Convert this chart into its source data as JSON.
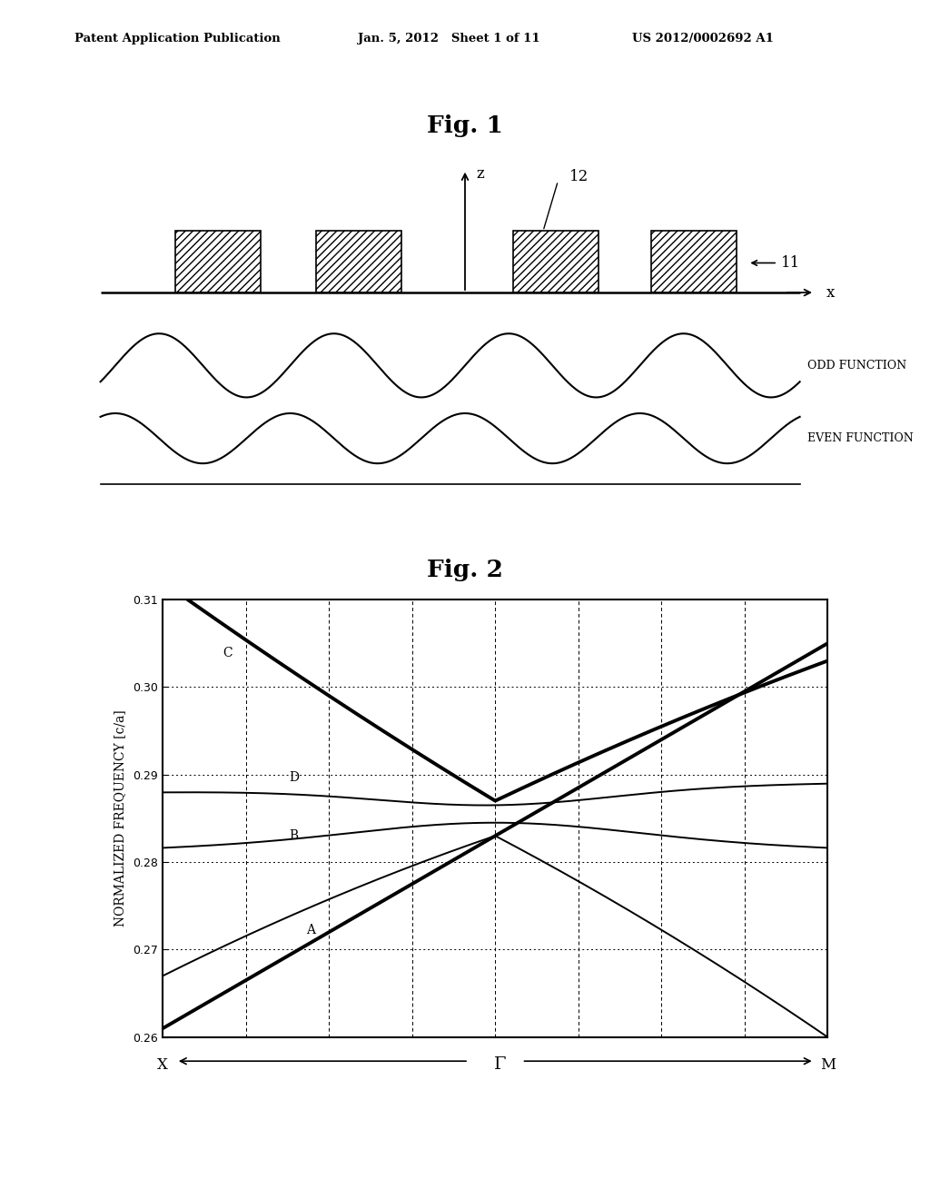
{
  "fig_title1": "Fig. 1",
  "fig_title2": "Fig. 2",
  "header_left": "Patent Application Publication",
  "header_mid": "Jan. 5, 2012   Sheet 1 of 11",
  "header_right": "US 2012/0002692 A1",
  "label_11": "11",
  "label_12": "12",
  "label_z": "z",
  "label_x": "x",
  "label_odd": "ODD FUNCTION",
  "label_even": "EVEN FUNCTION",
  "ylabel_fig2": "NORMALIZED FREQUENCY [c/a]",
  "xlabel_left": "X",
  "xlabel_mid": "Γ",
  "xlabel_right": "M",
  "yticks": [
    0.26,
    0.27,
    0.28,
    0.29,
    0.3,
    0.31
  ],
  "ylim": [
    0.26,
    0.31
  ],
  "bg_color": "#ffffff",
  "line_color": "#000000"
}
